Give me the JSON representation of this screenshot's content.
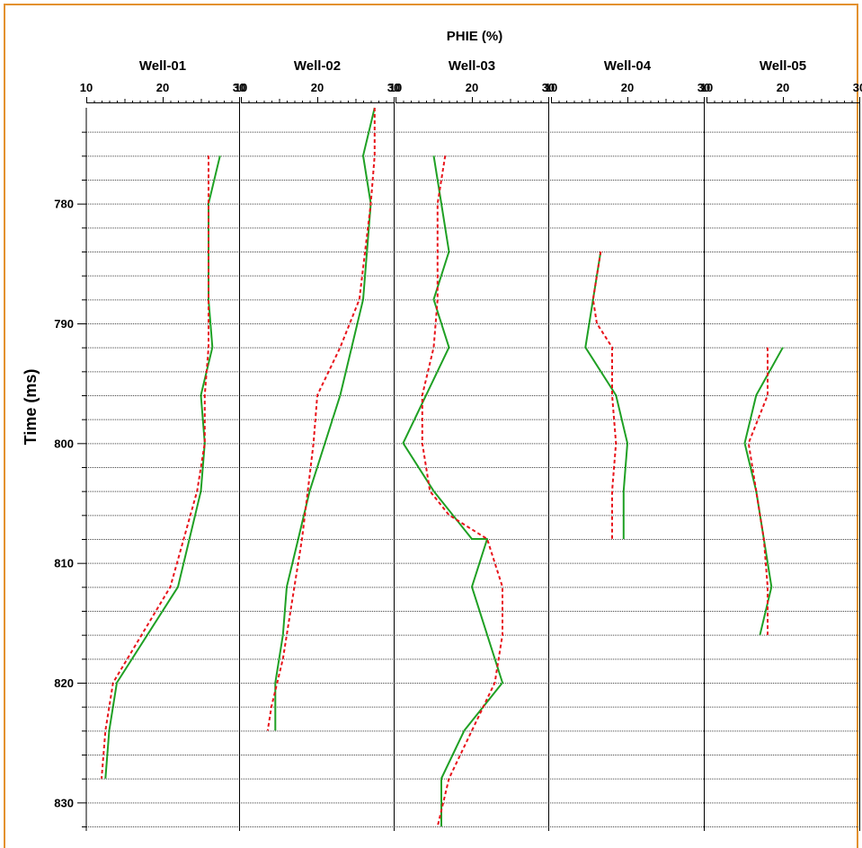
{
  "chart_data": {
    "type": "line",
    "title": "PHIE (%)",
    "ylabel": "Time (ms)",
    "y_tick_labels": [
      "780",
      "790",
      "800",
      "810",
      "820",
      "830"
    ],
    "y_ticks": [
      780,
      790,
      800,
      810,
      820,
      830
    ],
    "ylim": [
      772,
      832
    ],
    "y_inverted": true,
    "x_tick_labels": [
      "10",
      "20",
      "30"
    ],
    "x_ticks": [
      10,
      20,
      30
    ],
    "grid": true,
    "legend": "none",
    "colors": {
      "solid": "#1FA024",
      "dashed": "#E8141B",
      "frame": "#E3912F"
    },
    "panels": [
      {
        "name": "Well-01",
        "xlim": [
          10,
          30
        ],
        "series": [
          {
            "style": "solid",
            "points": [
              [
                27.5,
                776
              ],
              [
                26,
                780
              ],
              [
                26,
                788
              ],
              [
                26.5,
                792
              ],
              [
                25,
                796
              ],
              [
                25.5,
                800
              ],
              [
                25,
                804
              ],
              [
                22,
                812
              ],
              [
                14,
                820
              ],
              [
                13,
                824
              ],
              [
                12.5,
                828
              ]
            ]
          },
          {
            "style": "dashed",
            "points": [
              [
                26,
                776
              ],
              [
                26,
                780
              ],
              [
                26,
                788
              ],
              [
                26,
                792
              ],
              [
                25.5,
                796
              ],
              [
                25.5,
                800
              ],
              [
                24.5,
                804
              ],
              [
                21,
                812
              ],
              [
                13.5,
                820
              ],
              [
                12.5,
                824
              ],
              [
                12,
                828
              ]
            ]
          }
        ]
      },
      {
        "name": "Well-02",
        "xlim": [
          10,
          30
        ],
        "series": [
          {
            "style": "solid",
            "points": [
              [
                27.5,
                772
              ],
              [
                26,
                776
              ],
              [
                27,
                780
              ],
              [
                26,
                788
              ],
              [
                23,
                796
              ],
              [
                19,
                804
              ],
              [
                17.5,
                808
              ],
              [
                16,
                812
              ],
              [
                15.5,
                816
              ],
              [
                14.5,
                820
              ],
              [
                14.5,
                824
              ]
            ]
          },
          {
            "style": "dashed",
            "points": [
              [
                27.5,
                772
              ],
              [
                27.5,
                776
              ],
              [
                27,
                780
              ],
              [
                25.5,
                788
              ],
              [
                23,
                792
              ],
              [
                20,
                796
              ],
              [
                19.5,
                800
              ],
              [
                18,
                808
              ],
              [
                17,
                812
              ],
              [
                15.5,
                818
              ],
              [
                14,
                822
              ],
              [
                13.5,
                824
              ]
            ]
          }
        ]
      },
      {
        "name": "Well-03",
        "xlim": [
          10,
          30
        ],
        "series": [
          {
            "style": "solid",
            "points": [
              [
                15,
                776
              ],
              [
                16,
                780
              ],
              [
                17,
                784
              ],
              [
                15,
                788
              ],
              [
                17,
                792
              ],
              [
                11,
                800
              ],
              [
                15,
                804
              ],
              [
                20,
                808
              ],
              [
                22,
                808
              ],
              [
                20,
                812
              ],
              [
                22,
                816
              ],
              [
                24,
                820
              ],
              [
                19,
                824
              ],
              [
                16,
                828
              ],
              [
                16,
                832
              ]
            ]
          },
          {
            "style": "dashed",
            "points": [
              [
                16.5,
                776
              ],
              [
                15.5,
                780
              ],
              [
                15.5,
                784
              ],
              [
                15.5,
                788
              ],
              [
                15,
                792
              ],
              [
                13.5,
                796
              ],
              [
                13.5,
                800
              ],
              [
                14.5,
                804
              ],
              [
                17,
                806
              ],
              [
                22,
                808
              ],
              [
                24,
                812
              ],
              [
                24,
                816
              ],
              [
                23,
                820
              ],
              [
                20,
                824
              ],
              [
                17,
                828
              ],
              [
                15.5,
                832
              ]
            ]
          }
        ]
      },
      {
        "name": "Well-04",
        "xlim": [
          10,
          30
        ],
        "series": [
          {
            "style": "solid",
            "points": [
              [
                16.5,
                784
              ],
              [
                15.5,
                788
              ],
              [
                14.5,
                792
              ],
              [
                18.5,
                796
              ],
              [
                20,
                800
              ],
              [
                19.5,
                804
              ],
              [
                19.5,
                808
              ]
            ]
          },
          {
            "style": "dashed",
            "points": [
              [
                16.5,
                784
              ],
              [
                15.5,
                788
              ],
              [
                16,
                790
              ],
              [
                18,
                792
              ],
              [
                18,
                796
              ],
              [
                18.5,
                800
              ],
              [
                18,
                804
              ],
              [
                18,
                808
              ]
            ]
          }
        ]
      },
      {
        "name": "Well-05",
        "xlim": [
          10,
          30
        ],
        "series": [
          {
            "style": "solid",
            "points": [
              [
                20,
                792
              ],
              [
                16.5,
                796
              ],
              [
                15,
                800
              ],
              [
                16.5,
                804
              ],
              [
                17.5,
                808
              ],
              [
                18.5,
                812
              ],
              [
                17,
                816
              ]
            ]
          },
          {
            "style": "dashed",
            "points": [
              [
                18,
                792
              ],
              [
                18,
                796
              ],
              [
                15.5,
                800
              ],
              [
                16.5,
                804
              ],
              [
                17.5,
                808
              ],
              [
                18,
                812
              ],
              [
                18,
                816
              ]
            ]
          }
        ]
      }
    ]
  }
}
